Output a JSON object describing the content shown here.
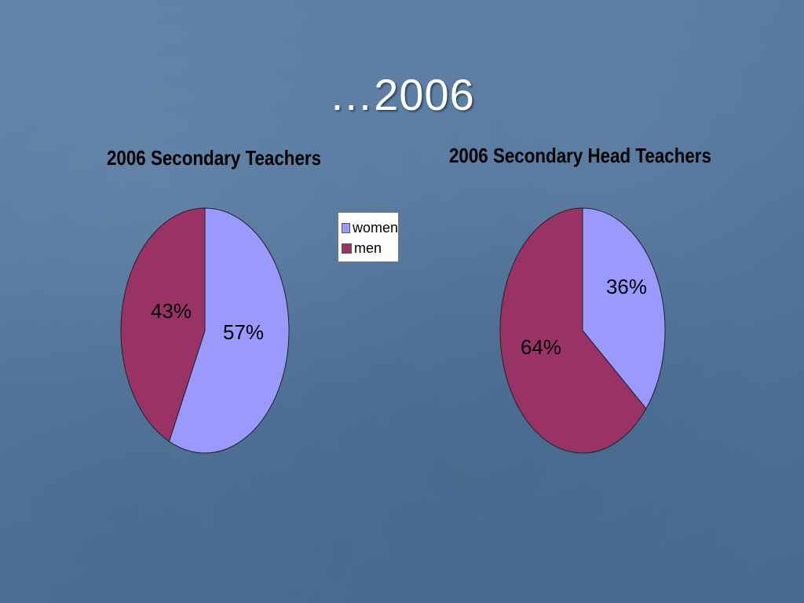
{
  "slide": {
    "title": "…2006"
  },
  "colors": {
    "women": "#9999ff",
    "men": "#993366",
    "background": "#52779e"
  },
  "legend": {
    "items": [
      {
        "label": "women",
        "color": "#9999ff"
      },
      {
        "label": "men",
        "color": "#993366"
      }
    ]
  },
  "chart_data": [
    {
      "type": "pie",
      "title": "2006 Secondary Teachers",
      "categories": [
        "women",
        "men"
      ],
      "values": [
        57,
        43
      ],
      "labels": [
        "57%",
        "43%"
      ],
      "colors": [
        "#9999ff",
        "#993366"
      ]
    },
    {
      "type": "pie",
      "title": "2006 Secondary Head Teachers",
      "categories": [
        "women",
        "men"
      ],
      "values": [
        36,
        64
      ],
      "labels": [
        "36%",
        "64%"
      ],
      "colors": [
        "#9999ff",
        "#993366"
      ]
    }
  ]
}
